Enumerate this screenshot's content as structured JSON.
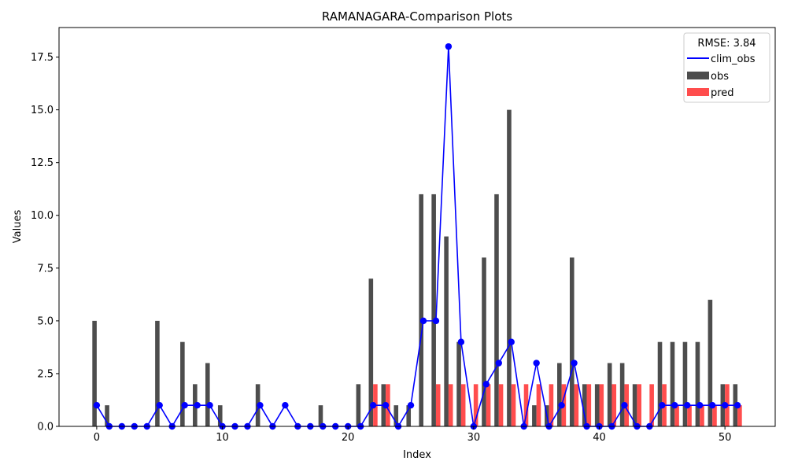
{
  "chart_data": {
    "type": "bar",
    "title": "RAMANAGARA-Comparison Plots",
    "xlabel": "Index",
    "ylabel": "Values",
    "xlim": [
      -3,
      54
    ],
    "ylim": [
      0,
      18.9
    ],
    "x_ticks": [
      0,
      10,
      20,
      30,
      40,
      50
    ],
    "y_ticks": [
      0.0,
      2.5,
      5.0,
      7.5,
      10.0,
      12.5,
      15.0,
      17.5
    ],
    "y_tick_labels": [
      "0.0",
      "2.5",
      "5.0",
      "7.5",
      "10.0",
      "12.5",
      "15.0",
      "17.5"
    ],
    "grid": false,
    "legend": {
      "placement": "top-right",
      "title": "RMSE: 3.84"
    },
    "x": [
      0,
      1,
      2,
      3,
      4,
      5,
      6,
      7,
      8,
      9,
      10,
      11,
      12,
      13,
      14,
      15,
      16,
      17,
      18,
      19,
      20,
      21,
      22,
      23,
      24,
      25,
      26,
      27,
      28,
      29,
      30,
      31,
      32,
      33,
      34,
      35,
      36,
      37,
      38,
      39,
      40,
      41,
      42,
      43,
      44,
      45,
      46,
      47,
      48,
      49,
      50,
      51
    ],
    "series": [
      {
        "name": "clim_obs",
        "kind": "line",
        "color": "#0000ff",
        "values": [
          1,
          0,
          0,
          0,
          0,
          1,
          0,
          1,
          1,
          1,
          0,
          0,
          0,
          1,
          0,
          1,
          0,
          0,
          0,
          0,
          0,
          0,
          1,
          1,
          0,
          1,
          5,
          5,
          18,
          4,
          0,
          2,
          3,
          4,
          0,
          3,
          0,
          1,
          3,
          0,
          0,
          0,
          1,
          0,
          0,
          1,
          1,
          1,
          1,
          1,
          1,
          1
        ]
      },
      {
        "name": "obs",
        "kind": "bar",
        "color": "#4d4d4d",
        "values": [
          5,
          1,
          0,
          0,
          0,
          5,
          0,
          4,
          2,
          3,
          1,
          0,
          0,
          2,
          0,
          0,
          0,
          0,
          1,
          0,
          0,
          2,
          7,
          2,
          1,
          1,
          11,
          11,
          9,
          4,
          0,
          8,
          11,
          15,
          0,
          1,
          1,
          3,
          8,
          2,
          2,
          3,
          3,
          2,
          0,
          4,
          4,
          4,
          4,
          6,
          2,
          2
        ]
      },
      {
        "name": "pred",
        "kind": "bar",
        "color": "#ff4d4d",
        "values": [
          0,
          0,
          0,
          0,
          0,
          0,
          0,
          0,
          0,
          0,
          0,
          0,
          0,
          0,
          0,
          0,
          0,
          0,
          0,
          0,
          0,
          0,
          2,
          2,
          0,
          0,
          0,
          2,
          2,
          2,
          2,
          2,
          2,
          2,
          2,
          2,
          2,
          2,
          2,
          2,
          2,
          2,
          2,
          2,
          2,
          2,
          1,
          1,
          1,
          1,
          2,
          1
        ]
      }
    ]
  }
}
